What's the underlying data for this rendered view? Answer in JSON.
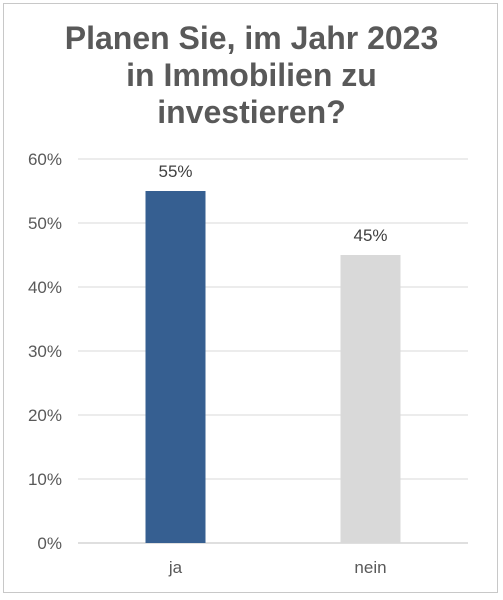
{
  "chart_data": {
    "type": "bar",
    "title_lines": [
      "Planen Sie, im Jahr 2023",
      "in Immobilien zu",
      "investieren?"
    ],
    "categories": [
      "ja",
      "nein"
    ],
    "values": [
      55,
      45
    ],
    "data_labels": [
      "55%",
      "45%"
    ],
    "bar_colors": [
      "#365f91",
      "#d9d9d9"
    ],
    "ylim": [
      0,
      60
    ],
    "yticks": [
      0,
      10,
      20,
      30,
      40,
      50,
      60
    ],
    "ytick_labels": [
      "0%",
      "10%",
      "20%",
      "30%",
      "40%",
      "50%",
      "60%"
    ],
    "grid": true,
    "legend": "none",
    "xlabel": "",
    "ylabel": ""
  }
}
